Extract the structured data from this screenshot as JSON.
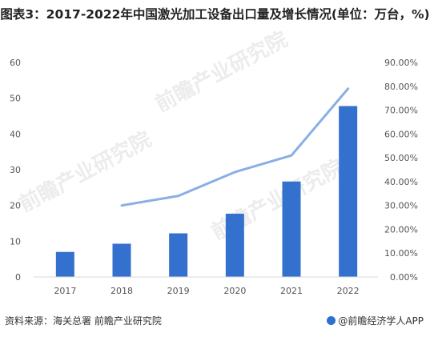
{
  "title": "图表3：2017-2022年中国激光加工设备出口量及增长情况(单位：万台，%)",
  "footer": {
    "source": "资料来源：海关总署 前瞻产业研究院",
    "brand": "@前瞻经济学人APP"
  },
  "watermark": "前瞻产业研究院",
  "colors": {
    "bar": "#3470cd",
    "line": "#8aaee6",
    "axis_text": "#555555"
  },
  "chart_data": {
    "type": "bar",
    "categories": [
      "2017",
      "2018",
      "2019",
      "2020",
      "2021",
      "2022"
    ],
    "series": [
      {
        "type": "bar",
        "axis": "left",
        "values": [
          7,
          9.3,
          12.2,
          17.7,
          26.7,
          47.8
        ]
      },
      {
        "type": "line",
        "axis": "right",
        "values": [
          null,
          0.3,
          0.34,
          0.44,
          0.51,
          0.79
        ]
      }
    ],
    "yticks_left": [
      "0",
      "10",
      "20",
      "30",
      "40",
      "50",
      "60"
    ],
    "yticks_right": [
      "0.00%",
      "10.00%",
      "20.00%",
      "30.00%",
      "40.00%",
      "50.00%",
      "60.00%",
      "70.00%",
      "80.00%",
      "90.00%"
    ],
    "ylim_left": [
      0,
      60
    ],
    "ylim_right": [
      0,
      0.9
    ],
    "grid": false,
    "legend": "none"
  }
}
